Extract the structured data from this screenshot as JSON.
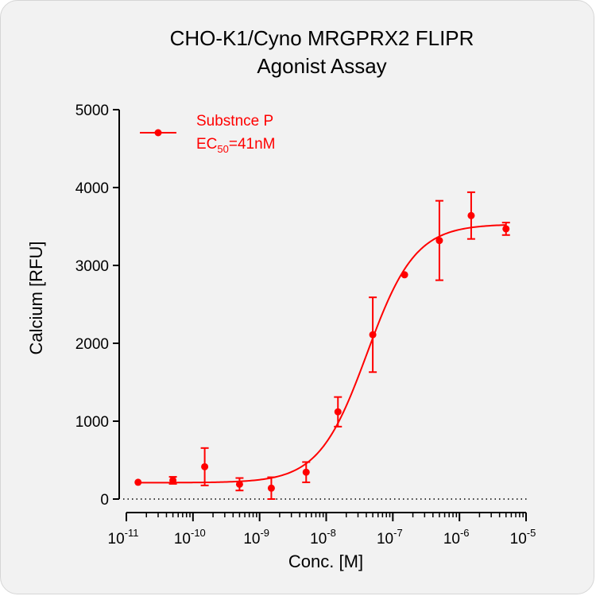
{
  "chart_data": {
    "type": "scatter",
    "title": [
      "CHO-K1/Cyno MRGPRX2 FLIPR",
      "Agonist Assay"
    ],
    "xlabel": "Conc. [M]",
    "ylabel": "Calcium [RFU]",
    "x_scale": "log",
    "xlim": [
      1e-11,
      1e-05
    ],
    "ylim": [
      0,
      5000
    ],
    "x_ticks": [
      {
        "base": "10",
        "exp": "-11"
      },
      {
        "base": "10",
        "exp": "-10"
      },
      {
        "base": "10",
        "exp": "-9"
      },
      {
        "base": "10",
        "exp": "-8"
      },
      {
        "base": "10",
        "exp": "-7"
      },
      {
        "base": "10",
        "exp": "-6"
      },
      {
        "base": "10",
        "exp": "-5"
      }
    ],
    "y_ticks": [
      "0",
      "1000",
      "2000",
      "3000",
      "4000",
      "5000"
    ],
    "baseline": "dotted line at y = 0",
    "series": [
      {
        "name": "Substnce P",
        "color": "#ff0000",
        "points": [
          {
            "x": 1.5e-11,
            "y": 215,
            "err": 0
          },
          {
            "x": 5e-11,
            "y": 240,
            "err": 45
          },
          {
            "x": 1.5e-10,
            "y": 415,
            "err": 240
          },
          {
            "x": 5e-10,
            "y": 190,
            "err": 80
          },
          {
            "x": 1.5e-09,
            "y": 140,
            "err": 140
          },
          {
            "x": 5e-09,
            "y": 345,
            "err": 130
          },
          {
            "x": 1.5e-08,
            "y": 1120,
            "err": 190
          },
          {
            "x": 5e-08,
            "y": 2110,
            "err": 480
          },
          {
            "x": 1.5e-07,
            "y": 2880,
            "err": 0
          },
          {
            "x": 5e-07,
            "y": 3320,
            "err": 510
          },
          {
            "x": 1.5e-06,
            "y": 3640,
            "err": 300
          },
          {
            "x": 5e-06,
            "y": 3470,
            "err": 80
          }
        ],
        "fit": {
          "model": "4PL",
          "bottom": 210,
          "top": 3530,
          "ec50": 4.1e-08,
          "hill": 1.2
        }
      }
    ],
    "legend": {
      "position": "top-left",
      "entries": [
        {
          "label": "Substnce P"
        },
        {
          "prefix": "EC",
          "sub": "50",
          "suffix": "=41nM"
        }
      ]
    }
  }
}
